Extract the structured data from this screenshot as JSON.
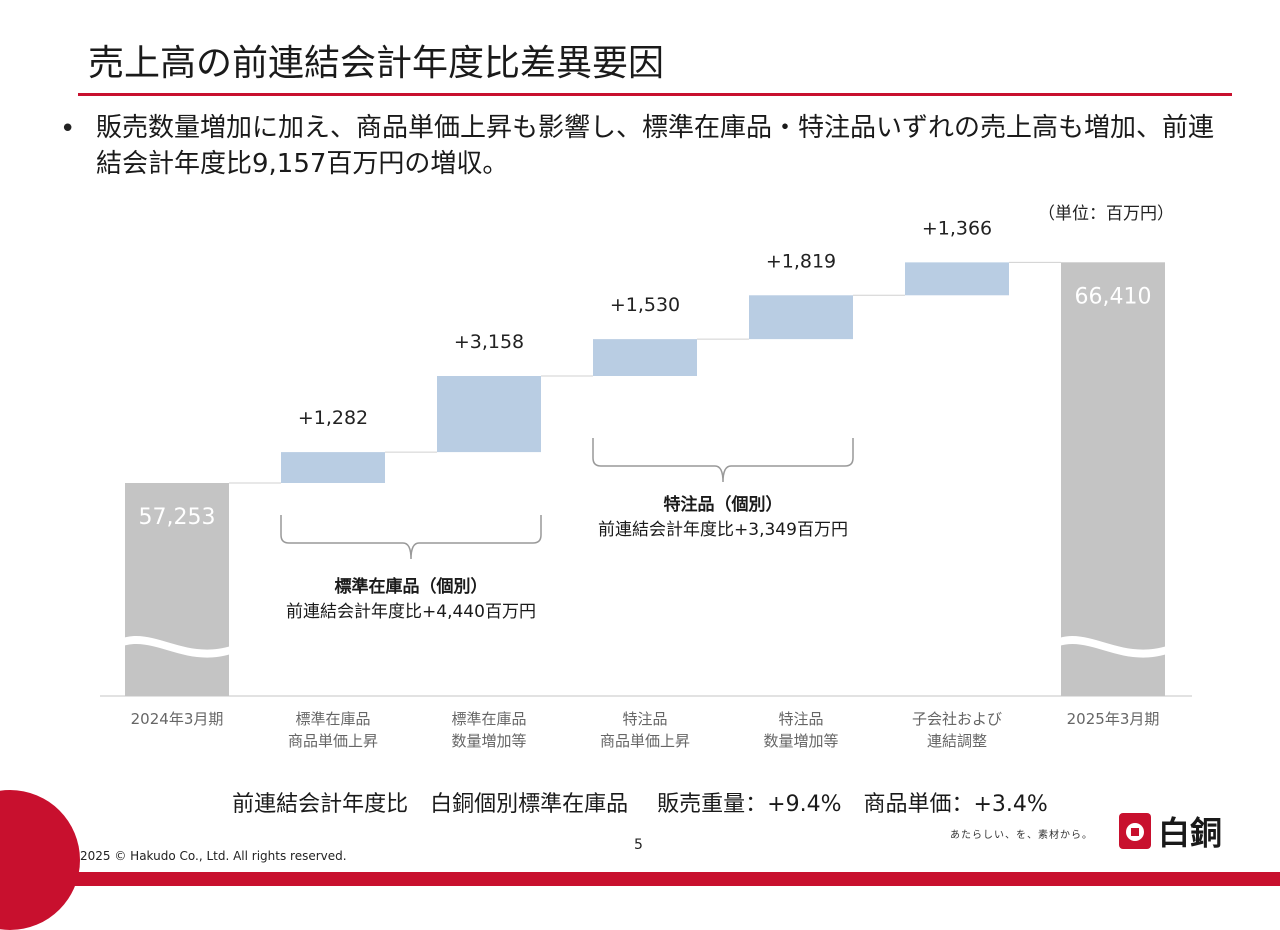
{
  "header": {
    "title": "売上高の前連結会計年度比差異要因",
    "bullet": "販売数量増加に加え、商品単価上昇も影響し、標準在庫品・特注品いずれの売上高も増加、前連結会計年度比9,157百万円の増収。"
  },
  "unit_label": "（単位：百万円）",
  "chart_data": {
    "type": "bar",
    "subtype": "waterfall",
    "categories": [
      [
        "2024年3月期"
      ],
      [
        "標準在庫品",
        "商品単価上昇"
      ],
      [
        "標準在庫品",
        "数量増加等"
      ],
      [
        "特注品",
        "商品単価上昇"
      ],
      [
        "特注品",
        "数量増加等"
      ],
      [
        "子会社および",
        "連結調整"
      ],
      [
        "2025年3月期"
      ]
    ],
    "values": [
      57253,
      1282,
      3158,
      1530,
      1819,
      1366,
      66410
    ],
    "labels": [
      "57,253",
      "+1,282",
      "+3,158",
      "+1,530",
      "+1,819",
      "+1,366",
      "66,410"
    ],
    "kinds": [
      "total",
      "delta",
      "delta",
      "delta",
      "delta",
      "delta",
      "total"
    ],
    "axis_break": true,
    "colors": {
      "total": "#c4c4c4",
      "delta": "#b9cde3",
      "connector": "#d0d0d0",
      "bracket": "#999999"
    },
    "groups": [
      {
        "title": "標準在庫品（個別）",
        "detail": "前連結会計年度比+4,440百万円",
        "span": [
          1,
          2
        ]
      },
      {
        "title": "特注品（個別）",
        "detail": "前連結会計年度比+3,349百万円",
        "span": [
          3,
          4
        ]
      }
    ]
  },
  "summary": "前連結会計年度比　白銅個別標準在庫品　 販売重量：+9.4%　商品単価：+3.4%",
  "footer": {
    "page": "5",
    "copyright": "2025 © Hakudo Co., Ltd. All rights reserved.",
    "tagline": "あたらしい、を、素材から。",
    "logo": "白銅"
  }
}
